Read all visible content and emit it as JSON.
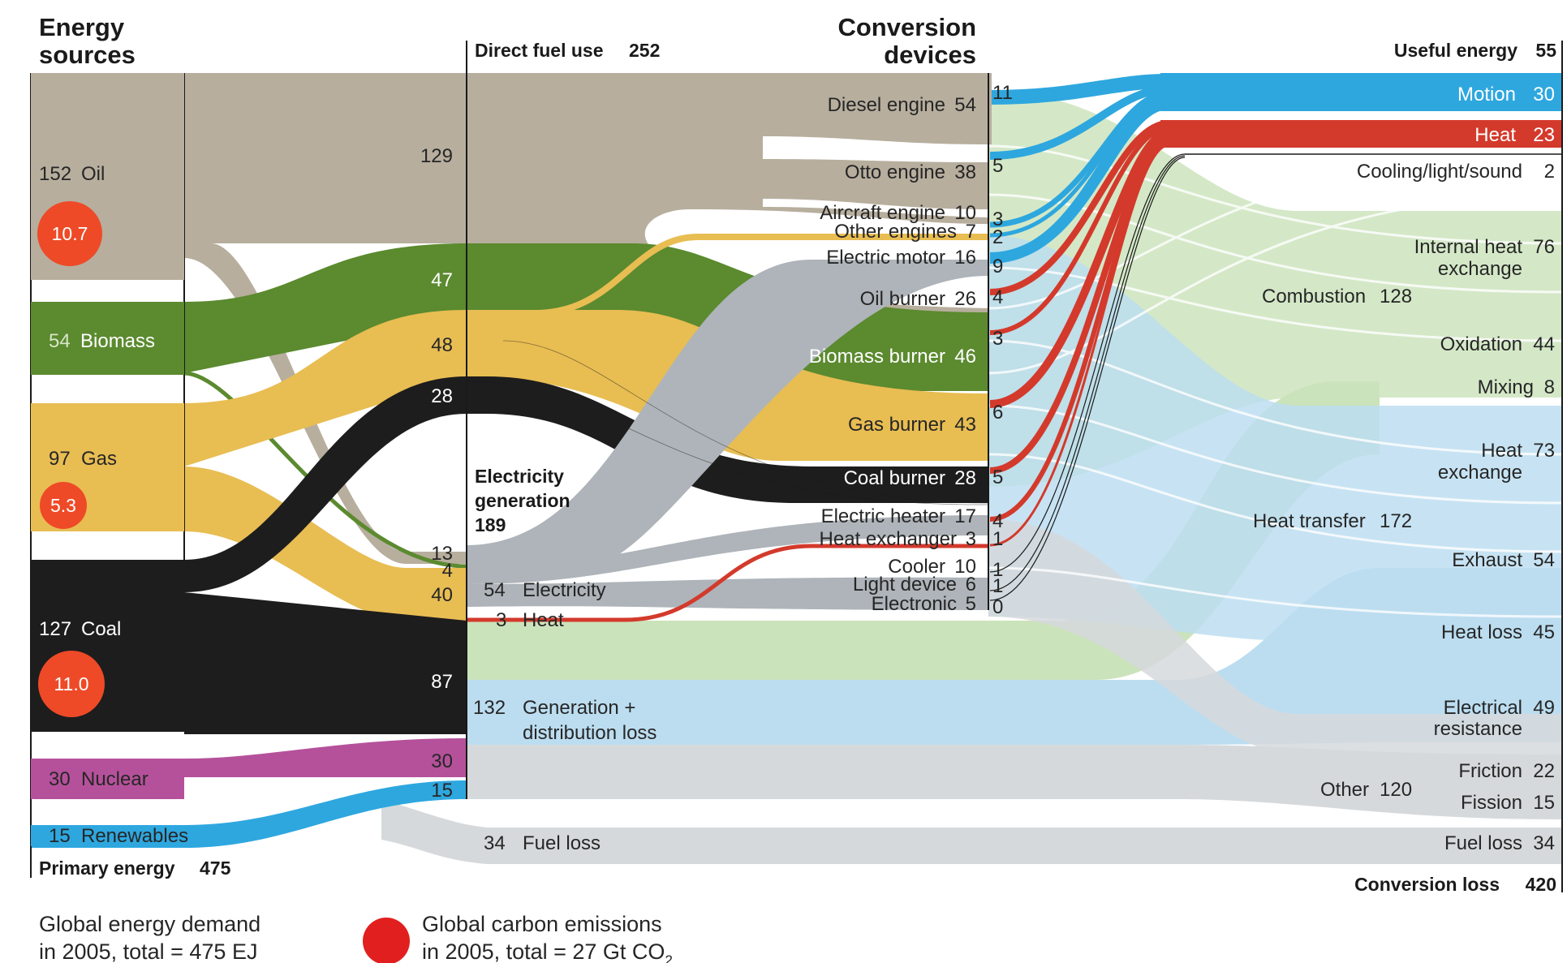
{
  "colors": {
    "oil": "#b7ae9e",
    "biomass": "#5b8a2f",
    "gas": "#e8bd52",
    "coal": "#1d1d1d",
    "nuclear": "#b5519b",
    "renewables": "#2ea7df",
    "light_blue": "#b9dcf0",
    "light_green": "#c9e2b8",
    "light_grey": "#d4d7da",
    "motion_blue": "#2ea7df",
    "heat_red": "#d33a2c",
    "elec_grey": "#aeb4b9",
    "co2_orange": "#ee4a27",
    "legend_red": "#e21f1f"
  },
  "headers": {
    "energy_sources": [
      "Energy",
      "sources"
    ],
    "direct_fuel_use": "Direct fuel use",
    "direct_fuel_value": "252",
    "conversion_devices": [
      "Conversion",
      "devices"
    ],
    "useful_energy": "Useful energy",
    "useful_energy_value": "55",
    "primary_energy": "Primary energy",
    "primary_energy_value": "475",
    "electricity_generation": [
      "Electricity",
      "generation",
      "189"
    ],
    "conversion_loss": "Conversion loss",
    "conversion_loss_value": "420"
  },
  "sources": [
    {
      "value": "152",
      "label": "Oil",
      "co2": "10.7"
    },
    {
      "value": "54",
      "label": "Biomass"
    },
    {
      "value": "97",
      "label": "Gas",
      "co2": "5.3"
    },
    {
      "value": "127",
      "label": "Coal",
      "co2": "11.0"
    },
    {
      "value": "30",
      "label": "Nuclear"
    },
    {
      "value": "15",
      "label": "Renewables"
    }
  ],
  "direct_fuel_values": [
    "129",
    "47",
    "48",
    "28"
  ],
  "electricity_inputs": [
    "13",
    "4",
    "40",
    "87",
    "30",
    "15"
  ],
  "electricity_outputs": [
    {
      "value": "54",
      "label": "Electricity"
    },
    {
      "value": "3",
      "label": "Heat"
    },
    {
      "value": "132",
      "label": "Generation +",
      "label2": "distribution loss"
    },
    {
      "value": "34",
      "label": "Fuel loss"
    }
  ],
  "devices": [
    {
      "label": "Diesel engine",
      "value": "54",
      "out": "11"
    },
    {
      "label": "Otto engine",
      "value": "38",
      "out": "5"
    },
    {
      "label": "Aircraft engine",
      "value": "10",
      "out": "3"
    },
    {
      "label": "Other engines",
      "value": "7",
      "out": "2"
    },
    {
      "label": "Electric motor",
      "value": "16",
      "out": "9"
    },
    {
      "label": "Oil burner",
      "value": "26",
      "out": "4"
    },
    {
      "label": "Biomass burner",
      "value": "46",
      "out": "3"
    },
    {
      "label": "Gas burner",
      "value": "43",
      "out": "6"
    },
    {
      "label": "Coal burner",
      "value": "28",
      "out": "5"
    },
    {
      "label": "Electric heater",
      "value": "17",
      "out": "4"
    },
    {
      "label": "Heat exchanger",
      "value": "3",
      "out": "1"
    },
    {
      "label": "Cooler",
      "value": "10",
      "out": "1"
    },
    {
      "label": "Light device",
      "value": "6",
      "out": "1"
    },
    {
      "label": "Electronic",
      "value": "5",
      "out": "0"
    }
  ],
  "useful": [
    {
      "label": "Motion",
      "value": "30"
    },
    {
      "label": "Heat",
      "value": "23"
    },
    {
      "label": "Cooling/light/sound",
      "value": "2"
    }
  ],
  "loss_groups": [
    {
      "label": "Combustion",
      "value": "128"
    },
    {
      "label": "Heat transfer",
      "value": "172"
    },
    {
      "label": "Other",
      "value": "120"
    }
  ],
  "losses": [
    {
      "label": "Internal heat",
      "label2": "exchange",
      "value": "76"
    },
    {
      "label": "Oxidation",
      "value": "44"
    },
    {
      "label": "Mixing",
      "value": "8"
    },
    {
      "label": "Heat",
      "label2": "exchange",
      "value": "73"
    },
    {
      "label": "Exhaust",
      "value": "54"
    },
    {
      "label": "Heat loss",
      "value": "45"
    },
    {
      "label": "Electrical",
      "label2": "resistance",
      "value": "49"
    },
    {
      "label": "Friction",
      "value": "22"
    },
    {
      "label": "Fission",
      "value": "15"
    },
    {
      "label": "Fuel loss",
      "value": "34"
    }
  ],
  "legend": {
    "demand_line1": "Global energy demand",
    "demand_line2": "in 2005, total = 475 EJ",
    "emissions_line1": "Global carbon emissions",
    "emissions_line2": "in 2005, total = 27 Gt CO",
    "emissions_sub": "2"
  }
}
